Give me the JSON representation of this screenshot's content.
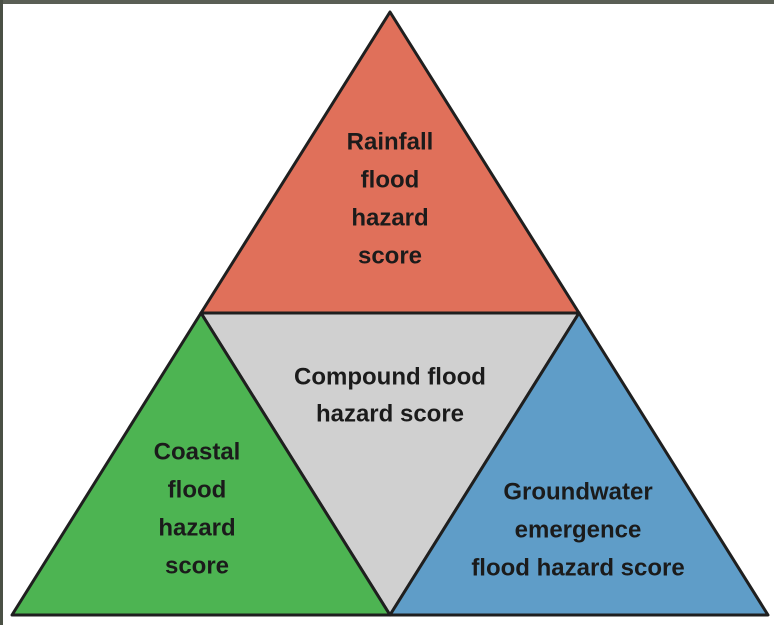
{
  "nodes": [
    {
      "id": "rainfall",
      "lines": [
        "Rainfall",
        "flood",
        "hazard",
        "score"
      ]
    },
    {
      "id": "compound",
      "lines": [
        "Compound flood",
        "hazard score"
      ]
    },
    {
      "id": "coastal",
      "lines": [
        "Coastal",
        "flood",
        "hazard",
        "score"
      ]
    },
    {
      "id": "groundwater",
      "lines": [
        "Groundwater",
        "emergence",
        "flood hazard score"
      ]
    }
  ]
}
